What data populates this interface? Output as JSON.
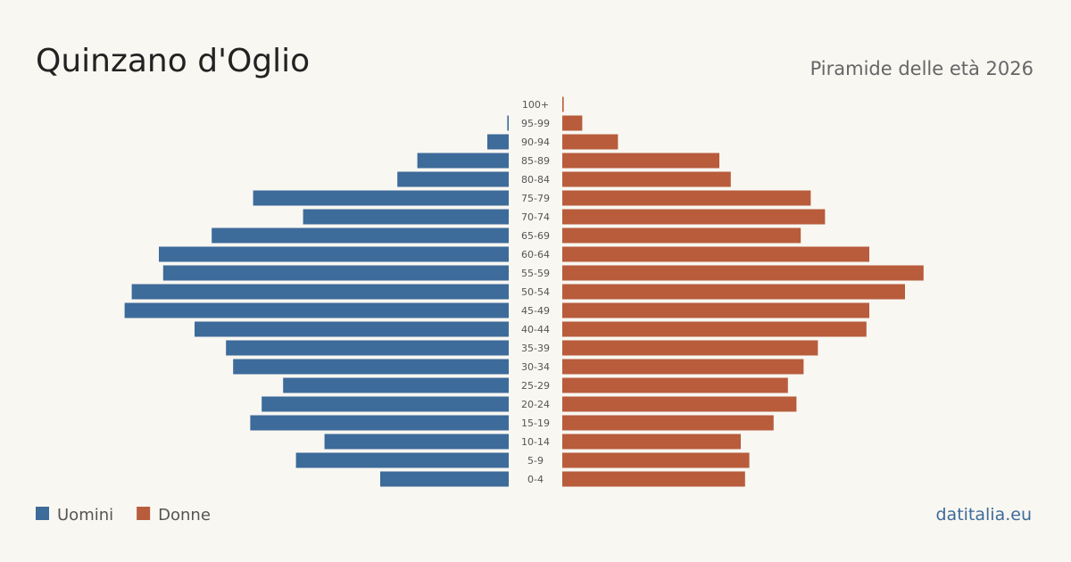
{
  "chart_data": {
    "type": "pyramid",
    "title": "Quinzano d'Oglio",
    "subtitle": "Piramide delle età 2026",
    "source": "datitalia.eu",
    "categories": [
      "0-4",
      "5-9",
      "10-14",
      "15-19",
      "20-24",
      "25-29",
      "30-34",
      "35-39",
      "40-44",
      "45-49",
      "50-54",
      "55-59",
      "60-64",
      "65-69",
      "70-74",
      "75-79",
      "80-84",
      "85-89",
      "90-94",
      "95-99",
      "100+"
    ],
    "series": [
      {
        "name": "Uomini",
        "color": "#3d6b9a",
        "values": [
          90,
          149,
          129,
          181,
          173,
          158,
          193,
          198,
          220,
          269,
          264,
          242,
          245,
          208,
          144,
          179,
          78,
          64,
          15,
          1,
          0
        ]
      },
      {
        "name": "Donne",
        "color": "#b85c3c",
        "values": [
          128,
          131,
          125,
          148,
          164,
          158,
          169,
          179,
          213,
          215,
          240,
          253,
          215,
          167,
          184,
          174,
          118,
          110,
          39,
          14,
          1
        ]
      }
    ],
    "xlim": [
      0,
      270
    ]
  }
}
